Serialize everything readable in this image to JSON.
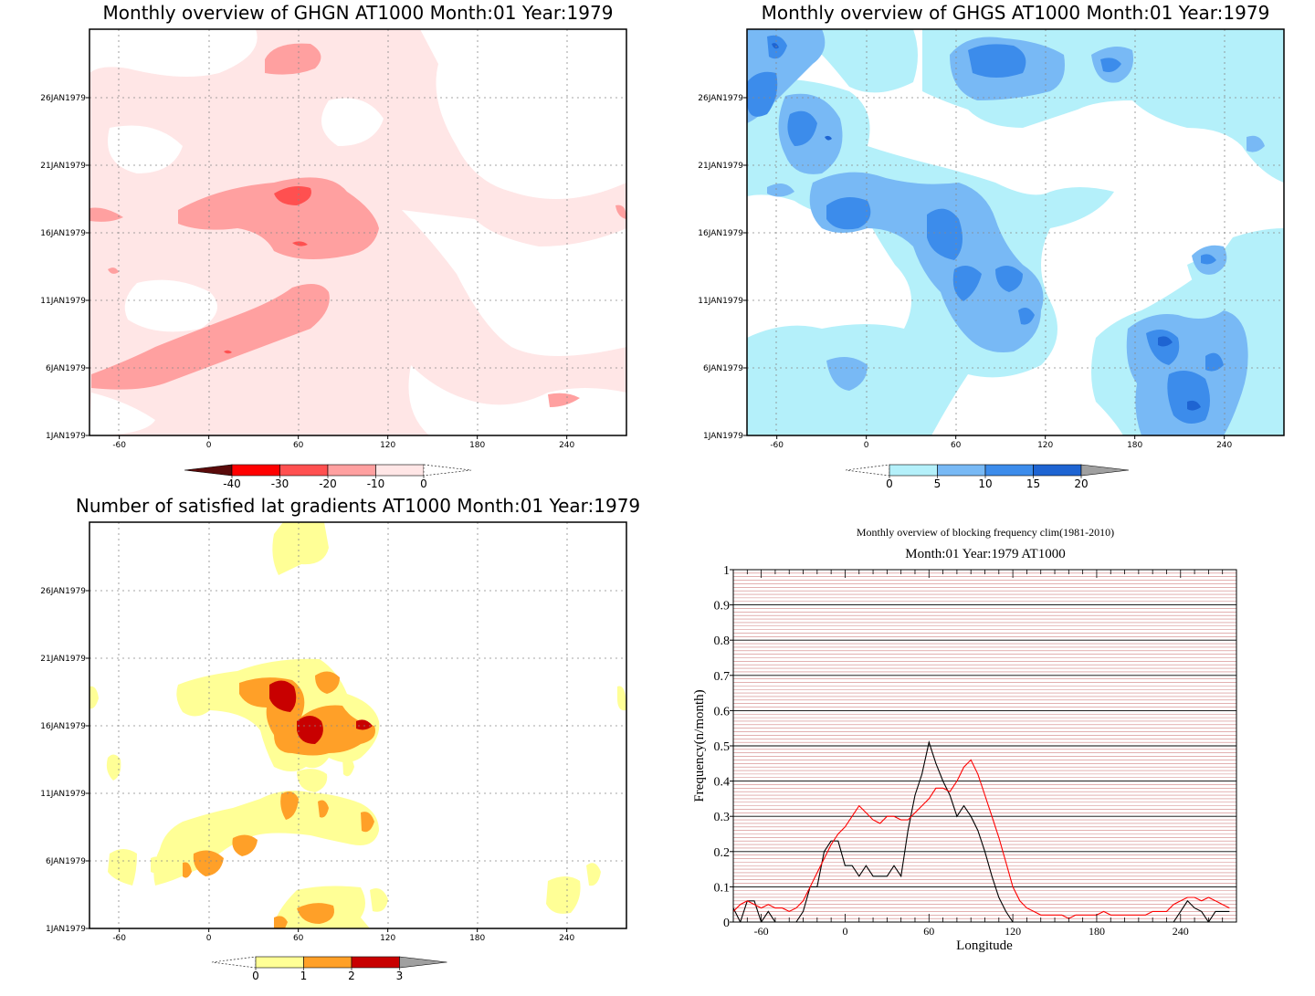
{
  "chart_data": [
    {
      "id": "ghgn",
      "type": "heatmap",
      "title": "Monthly overview of GHGN AT1000 Month:01 Year:1979",
      "x_ticks": [
        -60,
        0,
        60,
        120,
        180,
        240
      ],
      "y_ticks": [
        "1JAN1979",
        "6JAN1979",
        "11JAN1979",
        "16JAN1979",
        "21JAN1979",
        "26JAN1979"
      ],
      "x_range": [
        -80,
        280
      ],
      "colorbar": {
        "labels": [
          "-40",
          "-30",
          "-20",
          "-10",
          "0"
        ],
        "colors": [
          "#5a0a0a",
          "#ff0000",
          "#ff5050",
          "#ffa0a0",
          "#ffe6e6"
        ]
      }
    },
    {
      "id": "ghgs",
      "type": "heatmap",
      "title": "Monthly overview of GHGS AT1000 Month:01 Year:1979",
      "x_ticks": [
        -60,
        0,
        60,
        120,
        180,
        240
      ],
      "y_ticks": [
        "1JAN1979",
        "6JAN1979",
        "11JAN1979",
        "16JAN1979",
        "21JAN1979",
        "26JAN1979"
      ],
      "x_range": [
        -80,
        280
      ],
      "colorbar": {
        "labels": [
          "0",
          "5",
          "10",
          "15",
          "20"
        ],
        "colors": [
          "#b4f0fa",
          "#78b9f5",
          "#3c8ceb",
          "#1e64d2",
          "#a0a0a0"
        ]
      }
    },
    {
      "id": "latgrad",
      "type": "heatmap",
      "title": "Number of satisfied lat gradients AT1000 Month:01 Year:1979",
      "x_ticks": [
        -60,
        0,
        60,
        120,
        180,
        240
      ],
      "y_ticks": [
        "1JAN1979",
        "6JAN1979",
        "11JAN1979",
        "16JAN1979",
        "21JAN1979",
        "26JAN1979"
      ],
      "x_range": [
        -80,
        280
      ],
      "colorbar": {
        "labels": [
          "0",
          "1",
          "2",
          "3"
        ],
        "colors": [
          "#ffff96",
          "#ffa028",
          "#c80000",
          "#a0a0a0"
        ]
      }
    },
    {
      "id": "freq",
      "type": "line",
      "title": "Monthly overview of blocking frequency clim(1981-2010)",
      "subtitle": "Month:01 Year:1979  AT1000",
      "xlabel": "Longitude",
      "ylabel": "Frequency(n/month)",
      "x_ticks": [
        -60,
        0,
        60,
        120,
        180,
        240
      ],
      "y_ticks": [
        "0",
        "0.1",
        "0.2",
        "0.3",
        "0.4",
        "0.5",
        "0.6",
        "0.7",
        "0.8",
        "0.9",
        "1"
      ],
      "xlim": [
        -80,
        280
      ],
      "ylim": [
        0,
        1
      ],
      "series": [
        {
          "color": "#000000",
          "x": [
            -80,
            -75,
            -70,
            -65,
            -60,
            -55,
            -50,
            -45,
            -40,
            -35,
            -30,
            -25,
            -20,
            -15,
            -10,
            -5,
            0,
            5,
            10,
            15,
            20,
            25,
            30,
            35,
            40,
            45,
            50,
            55,
            60,
            65,
            70,
            75,
            80,
            85,
            90,
            95,
            100,
            105,
            110,
            115,
            120,
            125,
            130,
            135,
            140,
            145,
            150,
            155,
            160,
            165,
            170,
            175,
            180,
            185,
            190,
            195,
            200,
            205,
            210,
            215,
            220,
            225,
            230,
            235,
            240,
            245,
            250,
            255,
            260,
            265,
            270,
            275
          ],
          "y": [
            0.04,
            0.0,
            0.06,
            0.06,
            0.0,
            0.03,
            0.0,
            0.0,
            0.0,
            0.0,
            0.03,
            0.1,
            0.1,
            0.2,
            0.23,
            0.23,
            0.16,
            0.16,
            0.13,
            0.16,
            0.13,
            0.13,
            0.13,
            0.16,
            0.13,
            0.26,
            0.36,
            0.42,
            0.51,
            0.45,
            0.4,
            0.36,
            0.3,
            0.33,
            0.3,
            0.26,
            0.2,
            0.13,
            0.07,
            0.03,
            0.0,
            0.0,
            0.0,
            0.0,
            0.0,
            0.0,
            0.0,
            0.0,
            0.0,
            0.0,
            0.0,
            0.0,
            0.0,
            0.0,
            0.0,
            0.0,
            0.0,
            0.0,
            0.0,
            0.0,
            0.0,
            0.0,
            0.0,
            0.0,
            0.03,
            0.06,
            0.04,
            0.03,
            0.0,
            0.03,
            0.03,
            0.03
          ]
        },
        {
          "color": "#ff0000",
          "x": [
            -80,
            -75,
            -70,
            -65,
            -60,
            -55,
            -50,
            -45,
            -40,
            -35,
            -30,
            -25,
            -20,
            -15,
            -10,
            -5,
            0,
            5,
            10,
            15,
            20,
            25,
            30,
            35,
            40,
            45,
            50,
            55,
            60,
            65,
            70,
            75,
            80,
            85,
            90,
            95,
            100,
            105,
            110,
            115,
            120,
            125,
            130,
            135,
            140,
            145,
            150,
            155,
            160,
            165,
            170,
            175,
            180,
            185,
            190,
            195,
            200,
            205,
            210,
            215,
            220,
            225,
            230,
            235,
            240,
            245,
            250,
            255,
            260,
            265,
            270,
            275
          ],
          "y": [
            0.03,
            0.05,
            0.06,
            0.05,
            0.04,
            0.05,
            0.04,
            0.04,
            0.03,
            0.04,
            0.06,
            0.1,
            0.14,
            0.18,
            0.22,
            0.25,
            0.27,
            0.3,
            0.33,
            0.31,
            0.29,
            0.28,
            0.3,
            0.3,
            0.29,
            0.29,
            0.31,
            0.33,
            0.35,
            0.38,
            0.38,
            0.37,
            0.4,
            0.44,
            0.46,
            0.42,
            0.36,
            0.3,
            0.24,
            0.17,
            0.1,
            0.06,
            0.04,
            0.03,
            0.02,
            0.02,
            0.02,
            0.02,
            0.01,
            0.02,
            0.02,
            0.02,
            0.02,
            0.03,
            0.02,
            0.02,
            0.02,
            0.02,
            0.02,
            0.02,
            0.03,
            0.03,
            0.03,
            0.05,
            0.06,
            0.07,
            0.07,
            0.06,
            0.07,
            0.06,
            0.05,
            0.04
          ]
        }
      ]
    }
  ]
}
